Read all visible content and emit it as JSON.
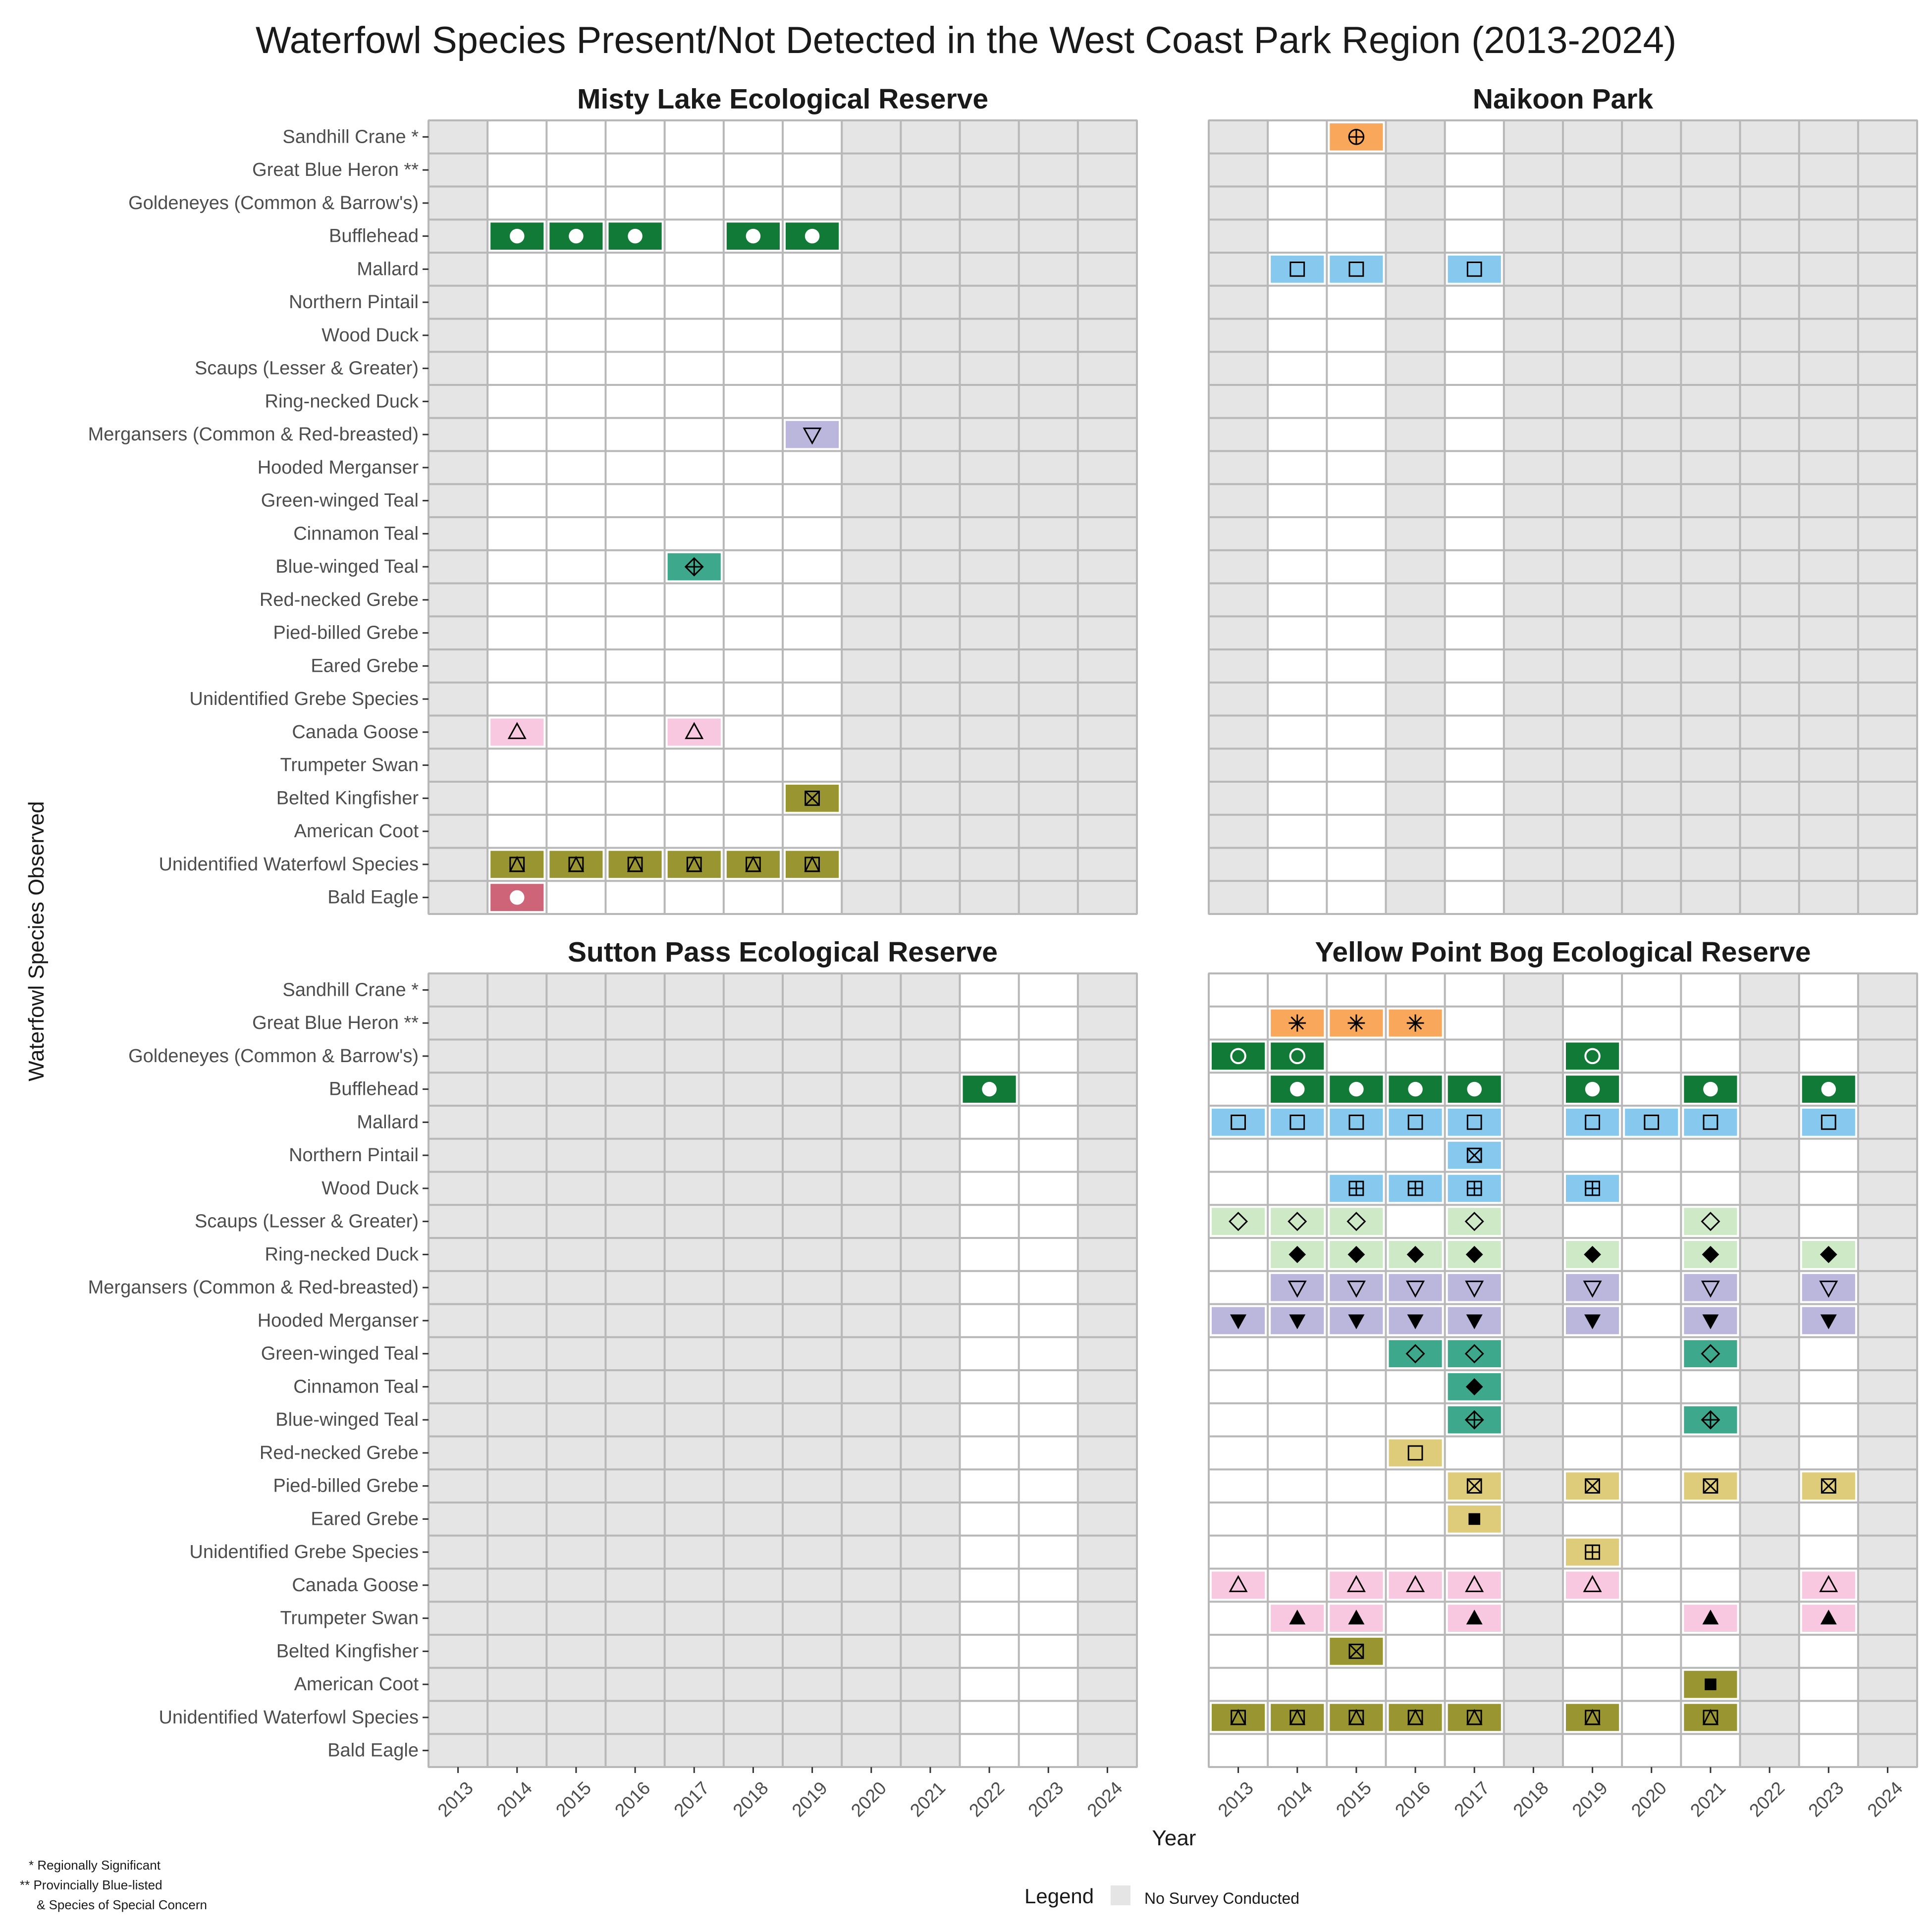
{
  "chart_data": {
    "type": "heatmap",
    "title": "Waterfowl Species Present/Not Detected in the West Coast Park Region (2013-2024)",
    "xlabel": "Year",
    "ylabel": "Waterfowl Species Observed",
    "years": [
      "2013",
      "2014",
      "2015",
      "2016",
      "2017",
      "2018",
      "2019",
      "2020",
      "2021",
      "2022",
      "2023",
      "2024"
    ],
    "species": [
      "Sandhill Crane *",
      "Great Blue Heron **",
      "Goldeneyes (Common & Barrow's)",
      "Bufflehead",
      "Mallard",
      "Northern Pintail",
      "Wood Duck",
      "Scaups (Lesser & Greater)",
      "Ring-necked Duck",
      "Mergansers (Common & Red-breasted)",
      "Hooded Merganser",
      "Green-winged Teal",
      "Cinnamon Teal",
      "Blue-winged Teal",
      "Red-necked Grebe",
      "Pied-billed Grebe",
      "Eared Grebe",
      "Unidentified Grebe Species",
      "Canada Goose",
      "Trumpeter Swan",
      "Belted Kingfisher",
      "American Coot",
      "Unidentified Waterfowl Species",
      "Bald Eagle"
    ],
    "species_style": {
      "Sandhill Crane *": {
        "color": "#f9a75a",
        "symbol": "circle-plus"
      },
      "Great Blue Heron **": {
        "color": "#f9a75a",
        "symbol": "asterisk"
      },
      "Goldeneyes (Common & Barrow's)": {
        "color": "#127a37",
        "symbol": "circle-open-white"
      },
      "Bufflehead": {
        "color": "#127a37",
        "symbol": "circle-filled-white"
      },
      "Mallard": {
        "color": "#87c8ef",
        "symbol": "square-open"
      },
      "Northern Pintail": {
        "color": "#87c8ef",
        "symbol": "square-x"
      },
      "Wood Duck": {
        "color": "#87c8ef",
        "symbol": "square-plus"
      },
      "Scaups (Lesser & Greater)": {
        "color": "#cde9c6",
        "symbol": "diamond-open"
      },
      "Ring-necked Duck": {
        "color": "#cde9c6",
        "symbol": "diamond-filled"
      },
      "Mergansers (Common & Red-breasted)": {
        "color": "#bbb6dc",
        "symbol": "triangle-down-open"
      },
      "Hooded Merganser": {
        "color": "#bbb6dc",
        "symbol": "triangle-down-filled"
      },
      "Green-winged Teal": {
        "color": "#3ea88c",
        "symbol": "diamond-open"
      },
      "Cinnamon Teal": {
        "color": "#3ea88c",
        "symbol": "diamond-filled"
      },
      "Blue-winged Teal": {
        "color": "#3ea88c",
        "symbol": "diamond-plus"
      },
      "Red-necked Grebe": {
        "color": "#dfcc7b",
        "symbol": "square-open"
      },
      "Pied-billed Grebe": {
        "color": "#dfcc7b",
        "symbol": "square-x"
      },
      "Eared Grebe": {
        "color": "#dfcc7b",
        "symbol": "square-filled"
      },
      "Unidentified Grebe Species": {
        "color": "#dfcc7b",
        "symbol": "square-plus"
      },
      "Canada Goose": {
        "color": "#f7c8e0",
        "symbol": "triangle-up-open"
      },
      "Trumpeter Swan": {
        "color": "#f7c8e0",
        "symbol": "triangle-up-filled"
      },
      "Belted Kingfisher": {
        "color": "#999530",
        "symbol": "square-x"
      },
      "American Coot": {
        "color": "#999530",
        "symbol": "square-filled"
      },
      "Unidentified Waterfowl Species": {
        "color": "#999530",
        "symbol": "square-triangle"
      },
      "Bald Eagle": {
        "color": "#cd6477",
        "symbol": "circle-filled-white"
      }
    },
    "no_survey_color": "#e5e5e5",
    "panels": [
      {
        "title": "Misty Lake Ecological Reserve",
        "no_survey_years": [
          "2013",
          "2020",
          "2021",
          "2022",
          "2023",
          "2024"
        ],
        "observations": [
          {
            "species": "Bufflehead",
            "years": [
              "2014",
              "2015",
              "2016",
              "2018",
              "2019"
            ]
          },
          {
            "species": "Mergansers (Common & Red-breasted)",
            "years": [
              "2019"
            ]
          },
          {
            "species": "Blue-winged Teal",
            "years": [
              "2017"
            ]
          },
          {
            "species": "Canada Goose",
            "years": [
              "2014",
              "2017"
            ]
          },
          {
            "species": "Belted Kingfisher",
            "years": [
              "2019"
            ]
          },
          {
            "species": "Unidentified Waterfowl Species",
            "years": [
              "2014",
              "2015",
              "2016",
              "2017",
              "2018",
              "2019"
            ]
          },
          {
            "species": "Bald Eagle",
            "years": [
              "2014"
            ]
          }
        ]
      },
      {
        "title": "Naikoon Park",
        "no_survey_years": [
          "2013",
          "2016",
          "2018",
          "2019",
          "2020",
          "2021",
          "2022",
          "2023",
          "2024"
        ],
        "observations": [
          {
            "species": "Sandhill Crane *",
            "years": [
              "2015"
            ]
          },
          {
            "species": "Mallard",
            "years": [
              "2014",
              "2015",
              "2017"
            ]
          }
        ]
      },
      {
        "title": "Sutton Pass Ecological Reserve",
        "no_survey_years": [
          "2013",
          "2014",
          "2015",
          "2016",
          "2017",
          "2018",
          "2019",
          "2020",
          "2021",
          "2024"
        ],
        "observations": [
          {
            "species": "Bufflehead",
            "years": [
              "2022"
            ]
          }
        ]
      },
      {
        "title": "Yellow Point Bog Ecological Reserve",
        "no_survey_years": [
          "2018",
          "2022",
          "2024"
        ],
        "observations": [
          {
            "species": "Great Blue Heron **",
            "years": [
              "2014",
              "2015",
              "2016"
            ]
          },
          {
            "species": "Goldeneyes (Common & Barrow's)",
            "years": [
              "2013",
              "2014",
              "2019"
            ]
          },
          {
            "species": "Bufflehead",
            "years": [
              "2014",
              "2015",
              "2016",
              "2017",
              "2019",
              "2021",
              "2023"
            ]
          },
          {
            "species": "Mallard",
            "years": [
              "2013",
              "2014",
              "2015",
              "2016",
              "2017",
              "2019",
              "2020",
              "2021",
              "2023"
            ]
          },
          {
            "species": "Northern Pintail",
            "years": [
              "2017"
            ]
          },
          {
            "species": "Wood Duck",
            "years": [
              "2015",
              "2016",
              "2017",
              "2019"
            ]
          },
          {
            "species": "Scaups (Lesser & Greater)",
            "years": [
              "2013",
              "2014",
              "2015",
              "2017",
              "2021"
            ]
          },
          {
            "species": "Ring-necked Duck",
            "years": [
              "2014",
              "2015",
              "2016",
              "2017",
              "2019",
              "2021",
              "2023"
            ]
          },
          {
            "species": "Mergansers (Common & Red-breasted)",
            "years": [
              "2014",
              "2015",
              "2016",
              "2017",
              "2019",
              "2021",
              "2023"
            ]
          },
          {
            "species": "Hooded Merganser",
            "years": [
              "2013",
              "2014",
              "2015",
              "2016",
              "2017",
              "2019",
              "2021",
              "2023"
            ]
          },
          {
            "species": "Green-winged Teal",
            "years": [
              "2016",
              "2017",
              "2021"
            ]
          },
          {
            "species": "Cinnamon Teal",
            "years": [
              "2017"
            ]
          },
          {
            "species": "Blue-winged Teal",
            "years": [
              "2017",
              "2021"
            ]
          },
          {
            "species": "Red-necked Grebe",
            "years": [
              "2016"
            ]
          },
          {
            "species": "Pied-billed Grebe",
            "years": [
              "2017",
              "2019",
              "2021",
              "2023"
            ]
          },
          {
            "species": "Eared Grebe",
            "years": [
              "2017"
            ]
          },
          {
            "species": "Unidentified Grebe Species",
            "years": [
              "2019"
            ]
          },
          {
            "species": "Canada Goose",
            "years": [
              "2013",
              "2015",
              "2016",
              "2017",
              "2019",
              "2023"
            ]
          },
          {
            "species": "Trumpeter Swan",
            "years": [
              "2014",
              "2015",
              "2017",
              "2021",
              "2023"
            ]
          },
          {
            "species": "Belted Kingfisher",
            "years": [
              "2015"
            ]
          },
          {
            "species": "American Coot",
            "years": [
              "2021"
            ]
          },
          {
            "species": "Unidentified Waterfowl Species",
            "years": [
              "2013",
              "2014",
              "2015",
              "2016",
              "2017",
              "2019",
              "2021"
            ]
          }
        ]
      }
    ],
    "legend": {
      "title": "Legend",
      "items": [
        "No Survey Conducted"
      ],
      "placement": "bottom"
    },
    "footnotes": [
      "* Regionally Significant",
      "** Provincially Blue-listed",
      "& Species of Special Concern"
    ]
  }
}
